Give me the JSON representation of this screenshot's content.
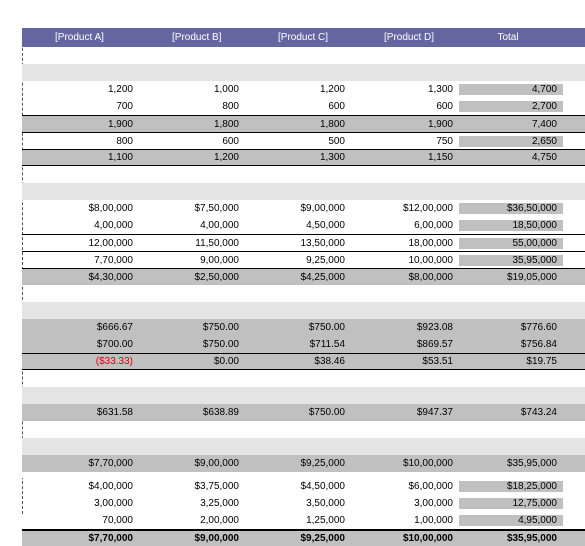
{
  "header": [
    "[Product A]",
    "[Product B]",
    "[Product C]",
    "[Product D]",
    "Total"
  ],
  "section1": [
    [
      "1,200",
      "1,000",
      "1,200",
      "1,300",
      "4,700"
    ],
    [
      "700",
      "800",
      "600",
      "600",
      "2,700"
    ],
    [
      "1,900",
      "1,800",
      "1,800",
      "1,900",
      "7,400"
    ],
    [
      "800",
      "600",
      "500",
      "750",
      "2,650"
    ],
    [
      "1,100",
      "1,200",
      "1,300",
      "1,150",
      "4,750"
    ]
  ],
  "section2": [
    [
      "$8,00,000",
      "$7,50,000",
      "$9,00,000",
      "$12,00,000",
      "$36,50,000"
    ],
    [
      "4,00,000",
      "4,00,000",
      "4,50,000",
      "6,00,000",
      "18,50,000"
    ],
    [
      "12,00,000",
      "11,50,000",
      "13,50,000",
      "18,00,000",
      "55,00,000"
    ],
    [
      "7,70,000",
      "9,00,000",
      "9,25,000",
      "10,00,000",
      "35,95,000"
    ],
    [
      "$4,30,000",
      "$2,50,000",
      "$4,25,000",
      "$8,00,000",
      "$19,05,000"
    ]
  ],
  "section3": [
    [
      "$666.67",
      "$750.00",
      "$750.00",
      "$923.08",
      "$776.60"
    ],
    [
      "$700.00",
      "$750.00",
      "$711.54",
      "$869.57",
      "$756.84"
    ],
    [
      "($33.33)",
      "$0.00",
      "$38.46",
      "$53.51",
      "$19.75"
    ]
  ],
  "section4": [
    [
      "$631.58",
      "$638.89",
      "$750.00",
      "$947.37",
      "$743.24"
    ]
  ],
  "section5": [
    [
      "$7,70,000",
      "$9,00,000",
      "$9,25,000",
      "$10,00,000",
      "$35,95,000"
    ]
  ],
  "section6": [
    [
      "$4,00,000",
      "$3,75,000",
      "$4,50,000",
      "$6,00,000",
      "$18,25,000"
    ],
    [
      "3,00,000",
      "3,25,000",
      "3,50,000",
      "3,00,000",
      "12,75,000"
    ],
    [
      "70,000",
      "2,00,000",
      "1,25,000",
      "1,00,000",
      "4,95,000"
    ],
    [
      "$7,70,000",
      "$9,00,000",
      "$9,25,000",
      "$10,00,000",
      "$35,95,000"
    ]
  ]
}
